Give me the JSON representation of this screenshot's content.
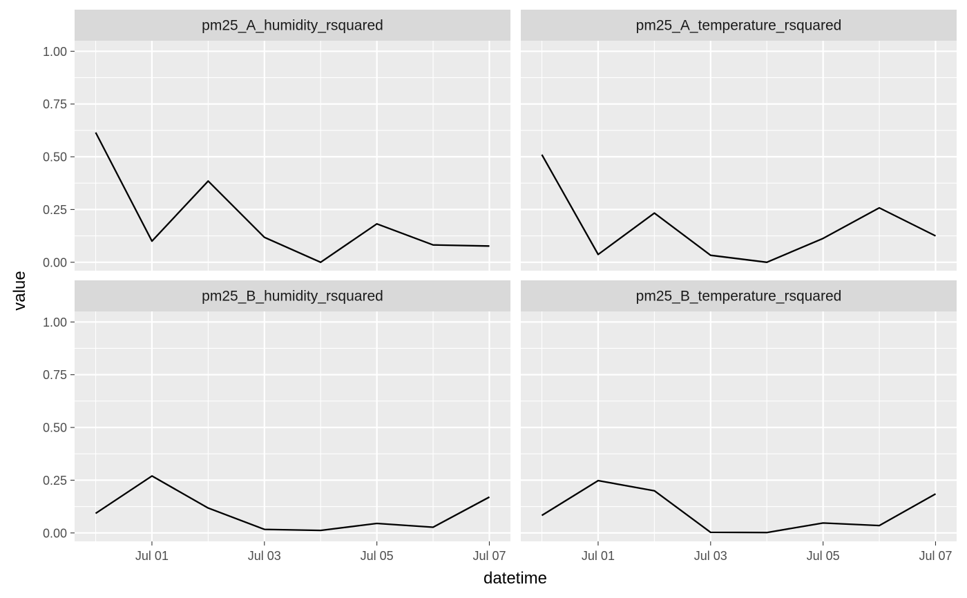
{
  "chart_data": {
    "type": "line",
    "layout": "facet_wrap 2x2",
    "xlabel": "datetime",
    "ylabel": "value",
    "x_tick_labels": [
      "Jul 01",
      "Jul 03",
      "Jul 05",
      "Jul 07"
    ],
    "x_tick_dates": [
      "2020-07-01",
      "2020-07-03",
      "2020-07-05",
      "2020-07-07"
    ],
    "y_tick_labels": [
      "0.00",
      "0.25",
      "0.50",
      "0.75",
      "1.00"
    ],
    "ylim": [
      -0.04,
      1.05
    ],
    "xlim": [
      "2020-06-29T15:00",
      "2020-07-07T09:00"
    ],
    "grid": true,
    "colors": {
      "panel_bg": "#ebebeb",
      "strip_bg": "#d9d9d9",
      "grid": "#ffffff",
      "line": "#000000",
      "tick_text": "#4d4d4d"
    },
    "x": [
      "2020-06-30",
      "2020-07-01",
      "2020-07-02",
      "2020-07-03",
      "2020-07-04",
      "2020-07-05",
      "2020-07-06",
      "2020-07-07"
    ],
    "panels": [
      {
        "name": "pm25_A_humidity_rsquared",
        "values": [
          0.615,
          0.1,
          0.385,
          0.118,
          0.0,
          0.182,
          0.082,
          0.077
        ]
      },
      {
        "name": "pm25_A_temperature_rsquared",
        "values": [
          0.51,
          0.037,
          0.233,
          0.033,
          0.0,
          0.113,
          0.258,
          0.125
        ]
      },
      {
        "name": "pm25_B_humidity_rsquared",
        "values": [
          0.093,
          0.27,
          0.118,
          0.017,
          0.012,
          0.045,
          0.027,
          0.17
        ]
      },
      {
        "name": "pm25_B_temperature_rsquared",
        "values": [
          0.083,
          0.248,
          0.2,
          0.003,
          0.002,
          0.047,
          0.035,
          0.185
        ]
      }
    ]
  }
}
